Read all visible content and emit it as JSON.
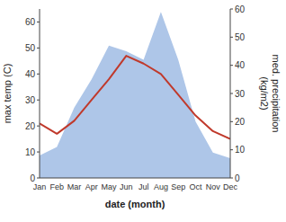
{
  "chart_data": {
    "type": "line",
    "categories": [
      "Jan",
      "Feb",
      "Mar",
      "Apr",
      "May",
      "Jun",
      "Jul",
      "Aug",
      "Sep",
      "Oct",
      "Nov",
      "Dec"
    ],
    "xlabel": "date (month)",
    "ylabel": "max temp (C)",
    "y2label": "med. precipitation\n(kg/m2)",
    "ylim": [
      0,
      65
    ],
    "yticks": [
      0,
      10,
      20,
      30,
      40,
      50,
      60
    ],
    "y2lim": [
      0,
      60
    ],
    "y2ticks": [
      0,
      10,
      20,
      30,
      40,
      50,
      60
    ],
    "series": [
      {
        "type": "area",
        "axis": "y2",
        "color": "#aec6e8",
        "values": [
          8,
          11,
          25,
          35,
          47,
          45,
          42,
          59,
          42,
          20,
          9,
          7
        ]
      },
      {
        "type": "line",
        "color": "#c0392b",
        "values": [
          21,
          17,
          22,
          30,
          38,
          47,
          44,
          40,
          32,
          24,
          18,
          15
        ]
      }
    ]
  }
}
